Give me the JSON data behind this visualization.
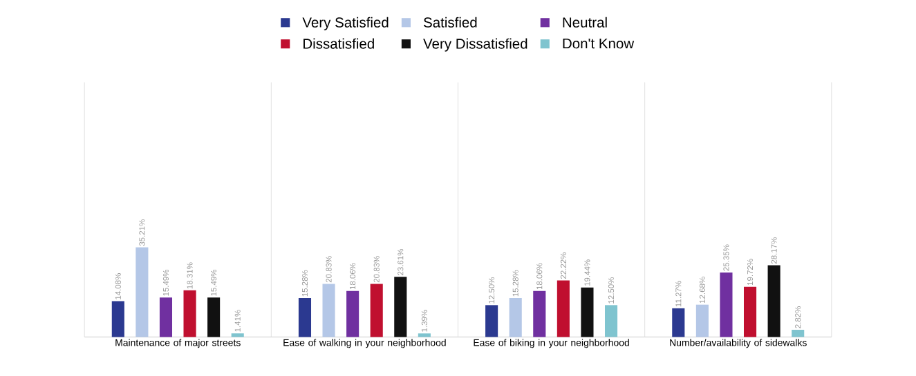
{
  "chart_data": {
    "type": "bar",
    "categories": [
      "Maintenance of major streets",
      "Ease of walking in your neighborhood",
      "Ease of biking in your neighborhood",
      "Number/availability of sidewalks"
    ],
    "series": [
      {
        "name": "Very Satisfied",
        "color": "#2b3990",
        "values": [
          14.08,
          15.28,
          12.5,
          11.27
        ],
        "value_labels": [
          "14.08%",
          "15.28%",
          "12.50%",
          "11.27%"
        ]
      },
      {
        "name": "Satisfied",
        "color": "#b4c7e7",
        "values": [
          35.21,
          20.83,
          15.28,
          12.68
        ],
        "value_labels": [
          "35.21%",
          "20.83%",
          "15.28%",
          "12.68%"
        ]
      },
      {
        "name": "Neutral",
        "color": "#7030a0",
        "values": [
          15.49,
          18.06,
          18.06,
          25.35
        ],
        "value_labels": [
          "15.49%",
          "18.06%",
          "18.06%",
          "25.35%"
        ]
      },
      {
        "name": "Dissatisfied",
        "color": "#c00f2f",
        "values": [
          18.31,
          20.83,
          22.22,
          19.72
        ],
        "value_labels": [
          "18.31%",
          "20.83%",
          "22.22%",
          "19.72%"
        ]
      },
      {
        "name": "Very Dissatisfied",
        "color": "#111111",
        "values": [
          15.49,
          23.61,
          19.44,
          28.17
        ],
        "value_labels": [
          "15.49%",
          "23.61%",
          "19.44%",
          "28.17%"
        ]
      },
      {
        "name": "Don't Know",
        "color": "#7fc4cf",
        "values": [
          1.41,
          1.39,
          12.5,
          2.82
        ],
        "value_labels": [
          "1.41%",
          "1.39%",
          "12.50%",
          "2.82%"
        ]
      }
    ],
    "ylim": [
      0,
      100
    ],
    "tick_labels": "x",
    "grid": "x",
    "legend": "top"
  }
}
